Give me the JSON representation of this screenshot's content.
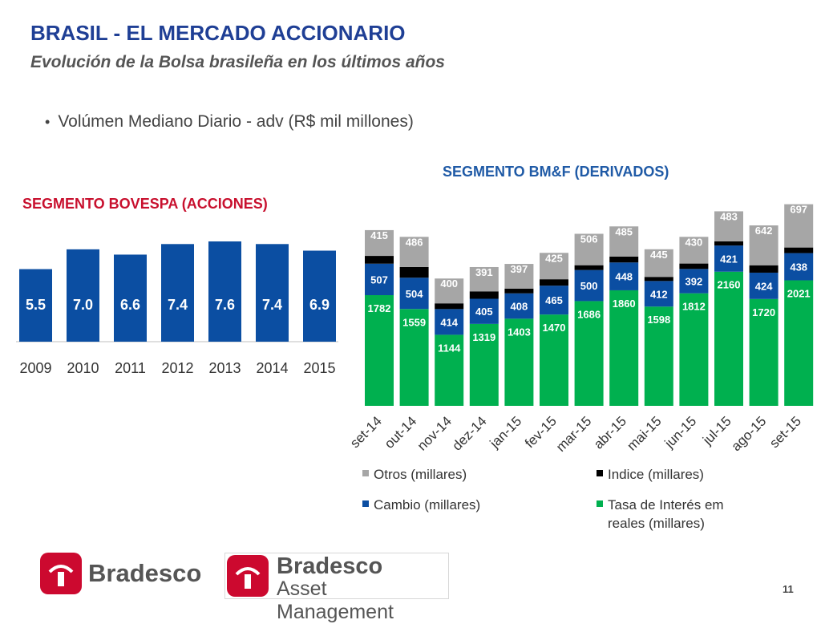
{
  "page": {
    "title": "BRASIL - EL MERCADO ACCIONARIO",
    "subtitle": "Evolución de la Bolsa brasileña en los últimos años",
    "bullet": "Volúmen Mediano Diario - adv (R$ mil millones)",
    "page_number": "11"
  },
  "logos": {
    "bradesco": "Bradesco",
    "asset_name": "Bradesco",
    "asset_sub": "Asset Management"
  },
  "colors": {
    "title": "#1f3f95",
    "bovespa_bar": "#0b4ea2",
    "tasa": "#00b04f",
    "cambio": "#0b4ea2",
    "indice": "#000000",
    "otros": "#a6a6a6",
    "bovespa_heading": "#c8102e",
    "bmf_heading": "#1f5aa6"
  },
  "chart_data": [
    {
      "type": "bar",
      "title": "SEGMENTO BOVESPA (ACCIONES)",
      "categories": [
        "2009",
        "2010",
        "2011",
        "2012",
        "2013",
        "2014",
        "2015"
      ],
      "values": [
        5.5,
        7.0,
        6.6,
        7.4,
        7.6,
        7.4,
        6.9
      ],
      "value_labels": [
        "5.5",
        "7.0",
        "6.6",
        "7.4",
        "7.6",
        "7.4",
        "6.9"
      ],
      "ylim": [
        0,
        7.6
      ],
      "grid": false
    },
    {
      "type": "bar",
      "stacked": true,
      "title": "SEGMENTO BM&F (DERIVADOS)",
      "categories": [
        "set-14",
        "out-14",
        "nov-14",
        "dez-14",
        "jan-15",
        "fev-15",
        "mar-15",
        "abr-15",
        "mai-15",
        "jun-15",
        "jul-15",
        "ago-15",
        "set-15"
      ],
      "series": [
        {
          "name": "Tasa de Interés em reales (millares)",
          "values": [
            1782,
            1559,
            1144,
            1319,
            1403,
            1470,
            1686,
            1860,
            1598,
            1812,
            2160,
            1720,
            2021
          ]
        },
        {
          "name": "Cambio (millares)",
          "values": [
            507,
            504,
            414,
            405,
            408,
            465,
            500,
            448,
            412,
            392,
            421,
            424,
            438
          ]
        },
        {
          "name": "Indice (millares)",
          "values": [
            125,
            172,
            92,
            119,
            77,
            103,
            78,
            96,
            66,
            87,
            68,
            119,
            90
          ]
        },
        {
          "name": "Otros (millares)",
          "values": [
            415,
            486,
            400,
            391,
            397,
            425,
            506,
            485,
            445,
            430,
            483,
            642,
            697
          ]
        }
      ],
      "legend": [
        {
          "name": "Otros (millares)",
          "color": "#a6a6a6"
        },
        {
          "name": "Indice (millares)",
          "color": "#000000"
        },
        {
          "name": "Cambio (millares)",
          "color": "#0b4ea2"
        },
        {
          "name": "Tasa de Interés em reales (millares)",
          "color": "#00b04f"
        }
      ],
      "legend_placement": "bottom",
      "grid": false
    }
  ]
}
